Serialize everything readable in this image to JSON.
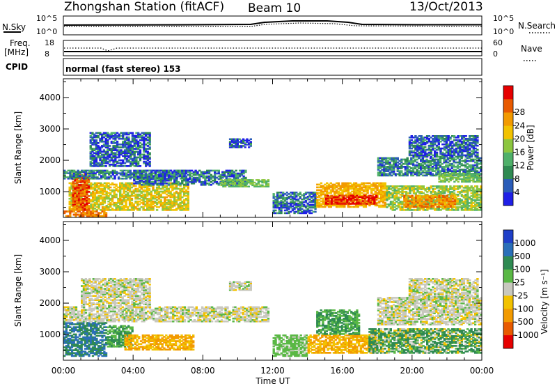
{
  "header": {
    "station": "Zhongshan Station (fitACF)",
    "beam": "Beam 10",
    "date": "13/Oct/2013"
  },
  "status_panels": {
    "nsky_label": "N.Sky",
    "nsky_max": "10^5",
    "nsky_min": "10^0",
    "nsearch_label": "N.Search",
    "nsearch_max": "10^5",
    "nsearch_min": "10^0",
    "freq_label_1": "Freq.",
    "freq_label_2": "[MHz]",
    "freq_max": "18",
    "freq_min": "8",
    "nave_label": "Nave",
    "nave_max": "60",
    "nave_min": "0",
    "cpid_label": "CPID",
    "cpid_text": "normal (fast stereo) 153"
  },
  "chart_data": [
    {
      "type": "heatmap",
      "ylabel": "Slant Range [km]",
      "xlabel": "Time UT",
      "x_ticks": [
        "00:00",
        "04:00",
        "08:00",
        "12:00",
        "16:00",
        "20:00",
        "00:00"
      ],
      "y_ticks": [
        1000,
        2000,
        3000,
        4000
      ],
      "ylim": [
        180,
        4600
      ],
      "colorbar": {
        "label": "Power [dB]",
        "ticks": [
          "4",
          "8",
          "12",
          "16",
          "20",
          "24",
          "28"
        ],
        "colors": [
          "#1f1fe6",
          "#2a5cb8",
          "#2f8a52",
          "#4fb06a",
          "#8cc63f",
          "#f2c200",
          "#f29a00",
          "#e85a00",
          "#e60000"
        ]
      },
      "regions": [
        {
          "t": [
            0.3,
            7.2
          ],
          "r": [
            400,
            1300
          ],
          "v": 17
        },
        {
          "t": [
            0.0,
            2.5
          ],
          "r": [
            200,
            400
          ],
          "v": 24
        },
        {
          "t": [
            0.5,
            1.5
          ],
          "r": [
            400,
            1600
          ],
          "v": 26
        },
        {
          "t": [
            0.0,
            7.0
          ],
          "r": [
            1400,
            1700
          ],
          "v": 7
        },
        {
          "t": [
            4.0,
            10.5
          ],
          "r": [
            1200,
            1700
          ],
          "v": 6
        },
        {
          "t": [
            9.0,
            11.8
          ],
          "r": [
            1150,
            1400
          ],
          "v": 12
        },
        {
          "t": [
            1.5,
            5.0
          ],
          "r": [
            1800,
            2900
          ],
          "v": 5
        },
        {
          "t": [
            9.5,
            10.8
          ],
          "r": [
            2400,
            2700
          ],
          "v": 5
        },
        {
          "t": [
            12.0,
            14.5
          ],
          "r": [
            300,
            1000
          ],
          "v": 6
        },
        {
          "t": [
            14.5,
            18.5
          ],
          "r": [
            500,
            1300
          ],
          "v": 20
        },
        {
          "t": [
            15.0,
            18.0
          ],
          "r": [
            600,
            900
          ],
          "v": 29
        },
        {
          "t": [
            18.5,
            24.0
          ],
          "r": [
            400,
            1200
          ],
          "v": 14
        },
        {
          "t": [
            19.5,
            22.5
          ],
          "r": [
            500,
            900
          ],
          "v": 23
        },
        {
          "t": [
            18.0,
            24.0
          ],
          "r": [
            1500,
            2100
          ],
          "v": 7
        },
        {
          "t": [
            21.5,
            24.0
          ],
          "r": [
            1300,
            1600
          ],
          "v": 12
        },
        {
          "t": [
            19.8,
            23.8
          ],
          "r": [
            2100,
            2800
          ],
          "v": 5
        }
      ]
    },
    {
      "type": "heatmap",
      "ylabel": "Slant Range [km]",
      "xlabel": "Time UT",
      "x_ticks": [
        "00:00",
        "04:00",
        "08:00",
        "12:00",
        "16:00",
        "20:00",
        "00:00"
      ],
      "y_ticks": [
        1000,
        2000,
        3000,
        4000
      ],
      "ylim": [
        180,
        4600
      ],
      "colorbar": {
        "label": "Velocity [m s⁻¹]",
        "ticks": [
          "1000",
          "500",
          "100",
          "25",
          "-25",
          "-100",
          "-500",
          "-1000"
        ],
        "colors": [
          "#1f3fc8",
          "#2a6fb8",
          "#2f8a52",
          "#5ab845",
          "#c8c8be",
          "#f2c200",
          "#f29a00",
          "#e85a00",
          "#e60000"
        ]
      },
      "regions": [
        {
          "t": [
            0.0,
            2.5
          ],
          "r": [
            300,
            1400
          ],
          "v": 500
        },
        {
          "t": [
            2.5,
            4.0
          ],
          "r": [
            600,
            1300
          ],
          "v": 100
        },
        {
          "t": [
            3.5,
            7.5
          ],
          "r": [
            500,
            1000
          ],
          "v": -100
        },
        {
          "t": [
            0.0,
            11.8
          ],
          "r": [
            1400,
            1900
          ],
          "v": 0
        },
        {
          "t": [
            1.0,
            5.0
          ],
          "r": [
            1900,
            2800
          ],
          "v": 0
        },
        {
          "t": [
            9.5,
            10.8
          ],
          "r": [
            2400,
            2700
          ],
          "v": 0
        },
        {
          "t": [
            12.0,
            14.0
          ],
          "r": [
            300,
            1000
          ],
          "v": 50
        },
        {
          "t": [
            14.0,
            18.0
          ],
          "r": [
            400,
            1000
          ],
          "v": -100
        },
        {
          "t": [
            14.5,
            17.0
          ],
          "r": [
            1000,
            1800
          ],
          "v": 100
        },
        {
          "t": [
            17.5,
            24.0
          ],
          "r": [
            400,
            1200
          ],
          "v": 150
        },
        {
          "t": [
            18.0,
            24.0
          ],
          "r": [
            1300,
            2200
          ],
          "v": 0
        },
        {
          "t": [
            19.8,
            23.8
          ],
          "r": [
            2100,
            2800
          ],
          "v": 0
        }
      ]
    }
  ]
}
